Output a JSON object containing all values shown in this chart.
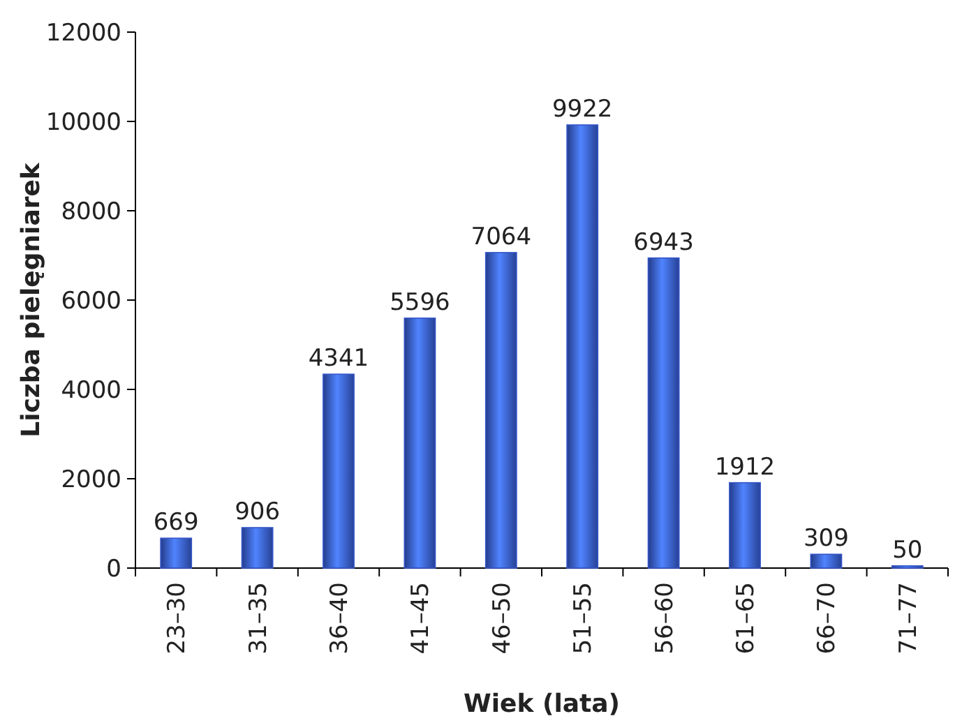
{
  "chart_data": {
    "type": "bar",
    "xlabel": "Wiek (lata)",
    "ylabel": "Liczba pielęgniarek",
    "categories": [
      "23–30",
      "31–35",
      "36–40",
      "41–45",
      "46–50",
      "51–55",
      "56–60",
      "61–65",
      "66–70",
      "71–77"
    ],
    "values": [
      669,
      906,
      4341,
      5596,
      7064,
      9922,
      6943,
      1912,
      309,
      50
    ],
    "color": "#3456c8",
    "ylim": [
      0,
      12000
    ],
    "yticks": [
      0,
      2000,
      4000,
      6000,
      8000,
      10000,
      12000
    ],
    "grid": false,
    "data_labels": true
  }
}
